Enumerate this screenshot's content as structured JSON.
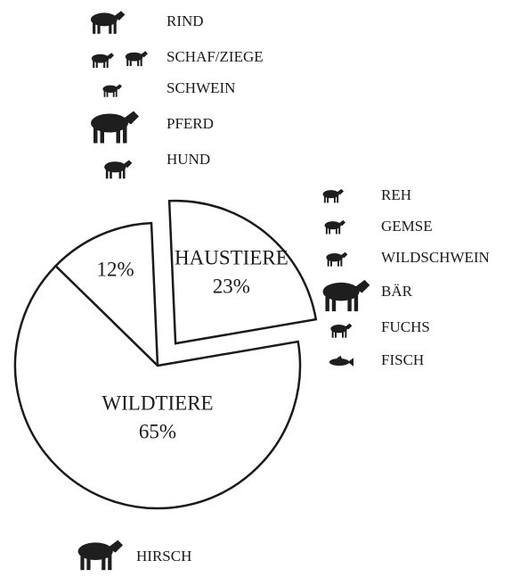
{
  "chart_data": {
    "type": "pie",
    "categories": [
      "HAUSTIERE",
      null,
      "WILDTIERE"
    ],
    "values": [
      23,
      12,
      65
    ],
    "value_labels": [
      "23%",
      "12%",
      "65%"
    ],
    "colors": [
      "#ffffff",
      "#ffffff",
      "#ffffff"
    ],
    "explode": [
      true,
      false,
      false
    ],
    "animal_lists": [
      [
        "RIND",
        "SCHAF/ZIEGE",
        "SCHWEIN",
        "PFERD",
        "HUND"
      ],
      [
        "REH",
        "GEMSE",
        "WILDSCHWEIN",
        "BÄR",
        "FUCHS",
        "FISCH"
      ],
      [
        "HIRSCH"
      ]
    ]
  }
}
